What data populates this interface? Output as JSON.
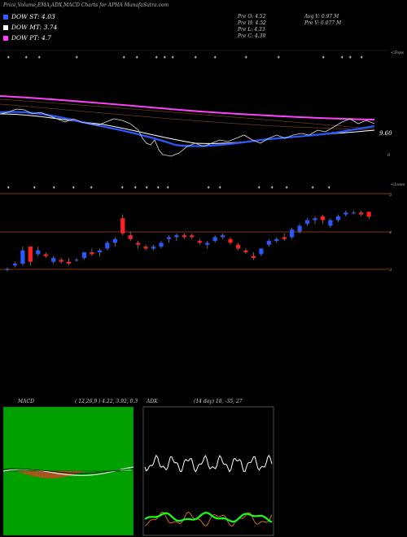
{
  "header": {
    "title": "Price,Volume,EMA,ADX,MACD Charts for APHA MunafaSutra.com"
  },
  "legend": [
    {
      "label": "DOW ST: 4.03",
      "color": "#3060ff"
    },
    {
      "label": "DOW MT: 3.74",
      "color": "#ffffff"
    },
    {
      "label": "DOW PT: 4.7",
      "color": "#ff40ff"
    }
  ],
  "stats": {
    "o": "Pre   O: 4.52",
    "h": "Pre   H: 4.52",
    "l": "Pre   L: 4.33",
    "c": "Pre   C: 4.39",
    "avgv": "Avg V: 0.97 M",
    "prev": "Pre   V: 6.077 M"
  },
  "ema_panel": {
    "top_label": "<Tops",
    "price_label": "9.60",
    "price_label2": "6"
  },
  "price_panel": {
    "lows_label": "<Lows",
    "levels": [
      "5",
      "4",
      "3"
    ]
  },
  "macd": {
    "title": "MACD",
    "params": "( 12,26,9 ) 4.22, 3.92, 0.3"
  },
  "adx": {
    "title": "ADX",
    "params": "(14  day) 18, -35, 27"
  },
  "chart_data": {
    "type": "candlestick",
    "ohlc": [
      [
        3.0,
        3.05,
        2.95,
        3.0
      ],
      [
        3.1,
        3.2,
        3.05,
        3.15
      ],
      [
        3.15,
        3.6,
        3.1,
        3.5
      ],
      [
        3.6,
        3.6,
        3.1,
        3.2
      ],
      [
        3.4,
        3.6,
        3.35,
        3.5
      ],
      [
        3.4,
        3.45,
        3.3,
        3.35
      ],
      [
        3.2,
        3.35,
        3.15,
        3.3
      ],
      [
        3.25,
        3.3,
        3.15,
        3.2
      ],
      [
        3.2,
        3.3,
        3.1,
        3.15
      ],
      [
        3.25,
        3.3,
        3.2,
        3.25
      ],
      [
        3.3,
        3.45,
        3.25,
        3.45
      ],
      [
        3.45,
        3.55,
        3.35,
        3.4
      ],
      [
        3.45,
        3.55,
        3.35,
        3.5
      ],
      [
        3.55,
        3.75,
        3.5,
        3.7
      ],
      [
        3.7,
        3.85,
        3.6,
        3.8
      ],
      [
        4.35,
        4.45,
        3.9,
        3.95
      ],
      [
        3.9,
        4.0,
        3.75,
        3.8
      ],
      [
        3.7,
        3.75,
        3.55,
        3.65
      ],
      [
        3.6,
        3.65,
        3.5,
        3.55
      ],
      [
        3.55,
        3.65,
        3.5,
        3.6
      ],
      [
        3.6,
        3.75,
        3.55,
        3.7
      ],
      [
        3.8,
        3.9,
        3.7,
        3.85
      ],
      [
        3.85,
        3.95,
        3.75,
        3.9
      ],
      [
        3.9,
        3.95,
        3.8,
        3.85
      ],
      [
        3.9,
        3.95,
        3.8,
        3.85
      ],
      [
        3.75,
        3.8,
        3.65,
        3.7
      ],
      [
        3.65,
        3.75,
        3.55,
        3.7
      ],
      [
        3.75,
        3.9,
        3.7,
        3.85
      ],
      [
        3.85,
        3.95,
        3.8,
        3.9
      ],
      [
        3.8,
        3.85,
        3.65,
        3.7
      ],
      [
        3.65,
        3.7,
        3.5,
        3.55
      ],
      [
        3.5,
        3.55,
        3.4,
        3.45
      ],
      [
        3.35,
        3.45,
        3.25,
        3.3
      ],
      [
        3.4,
        3.55,
        3.35,
        3.55
      ],
      [
        3.65,
        3.8,
        3.6,
        3.75
      ],
      [
        3.75,
        3.85,
        3.7,
        3.8
      ],
      [
        3.85,
        3.95,
        3.75,
        3.8
      ],
      [
        3.85,
        4.1,
        3.8,
        4.05
      ],
      [
        4.0,
        4.2,
        3.95,
        4.15
      ],
      [
        4.2,
        4.35,
        4.15,
        4.3
      ],
      [
        4.3,
        4.4,
        4.2,
        4.35
      ],
      [
        4.4,
        4.45,
        4.2,
        4.3
      ],
      [
        4.15,
        4.35,
        4.1,
        4.3
      ],
      [
        4.3,
        4.45,
        4.25,
        4.4
      ],
      [
        4.45,
        4.55,
        4.4,
        4.5
      ],
      [
        4.5,
        4.55,
        4.45,
        4.5
      ],
      [
        4.5,
        4.55,
        4.4,
        4.45
      ],
      [
        4.52,
        4.52,
        4.33,
        4.39
      ]
    ]
  }
}
